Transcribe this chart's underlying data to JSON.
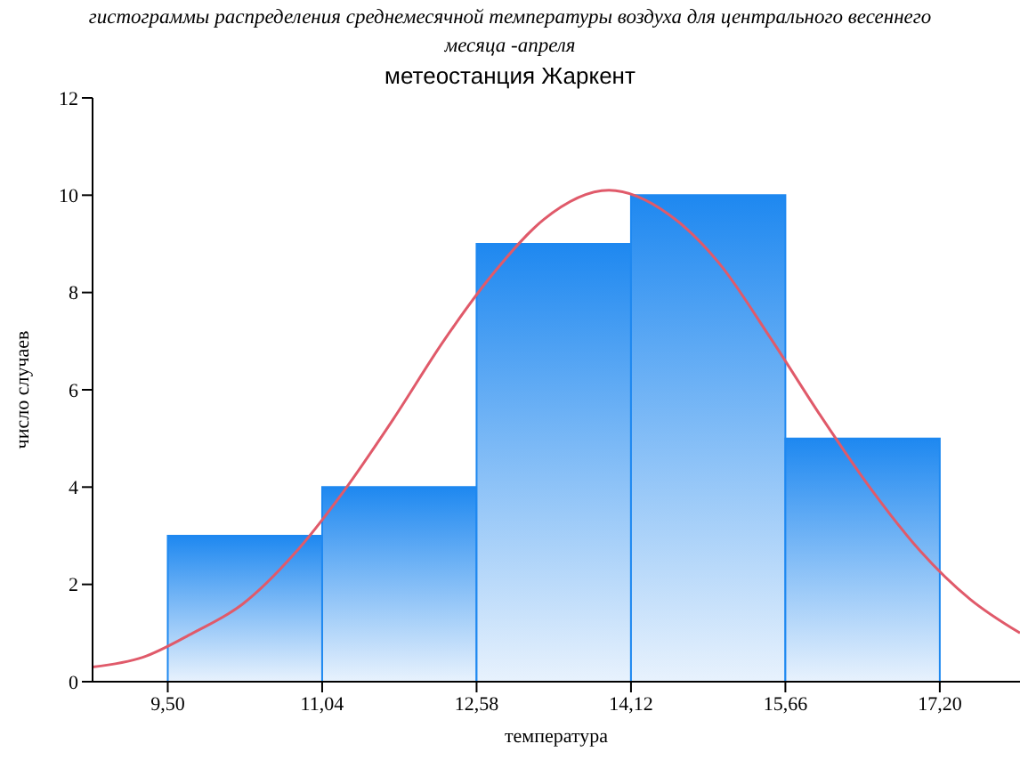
{
  "chart_data": {
    "type": "histogram",
    "title": "гистограммы распределения среднемесячной температуры воздуха для центрального весеннего месяца -апреля",
    "subtitle": "метеостанция Жаркент",
    "xlabel": "температура",
    "ylabel": "число случаев",
    "series": [
      {
        "bins": [
          9.5,
          11.04,
          12.58,
          14.12,
          15.66,
          17.2
        ],
        "values": [
          3,
          4,
          9,
          10,
          5
        ],
        "color": "#1e88f0"
      },
      {
        "type": "line",
        "x": [
          8.75,
          9.25,
          9.75,
          10.25,
          10.75,
          11.25,
          11.75,
          12.25,
          12.75,
          13.25,
          13.9,
          14.5,
          15.0,
          15.5,
          16.0,
          16.5,
          17.0,
          17.5,
          18.0
        ],
        "values": [
          0.3,
          0.5,
          1.0,
          1.6,
          2.6,
          3.9,
          5.4,
          7.0,
          8.4,
          9.5,
          10.1,
          9.6,
          8.6,
          7.1,
          5.5,
          4.0,
          2.7,
          1.7,
          1.0
        ],
        "color": "#e05a6a"
      }
    ],
    "xlim": [
      8.75,
      18.0
    ],
    "xticks": [
      {
        "value": 9.5,
        "label": "9,50"
      },
      {
        "value": 11.04,
        "label": "11,04"
      },
      {
        "value": 12.58,
        "label": "12,58"
      },
      {
        "value": 14.12,
        "label": "14,12"
      },
      {
        "value": 15.66,
        "label": "15,66"
      },
      {
        "value": 17.2,
        "label": "17,20"
      }
    ],
    "ylim": [
      0,
      12
    ],
    "yticks": [
      0,
      2,
      4,
      6,
      8,
      10,
      12
    ],
    "grid": false
  }
}
